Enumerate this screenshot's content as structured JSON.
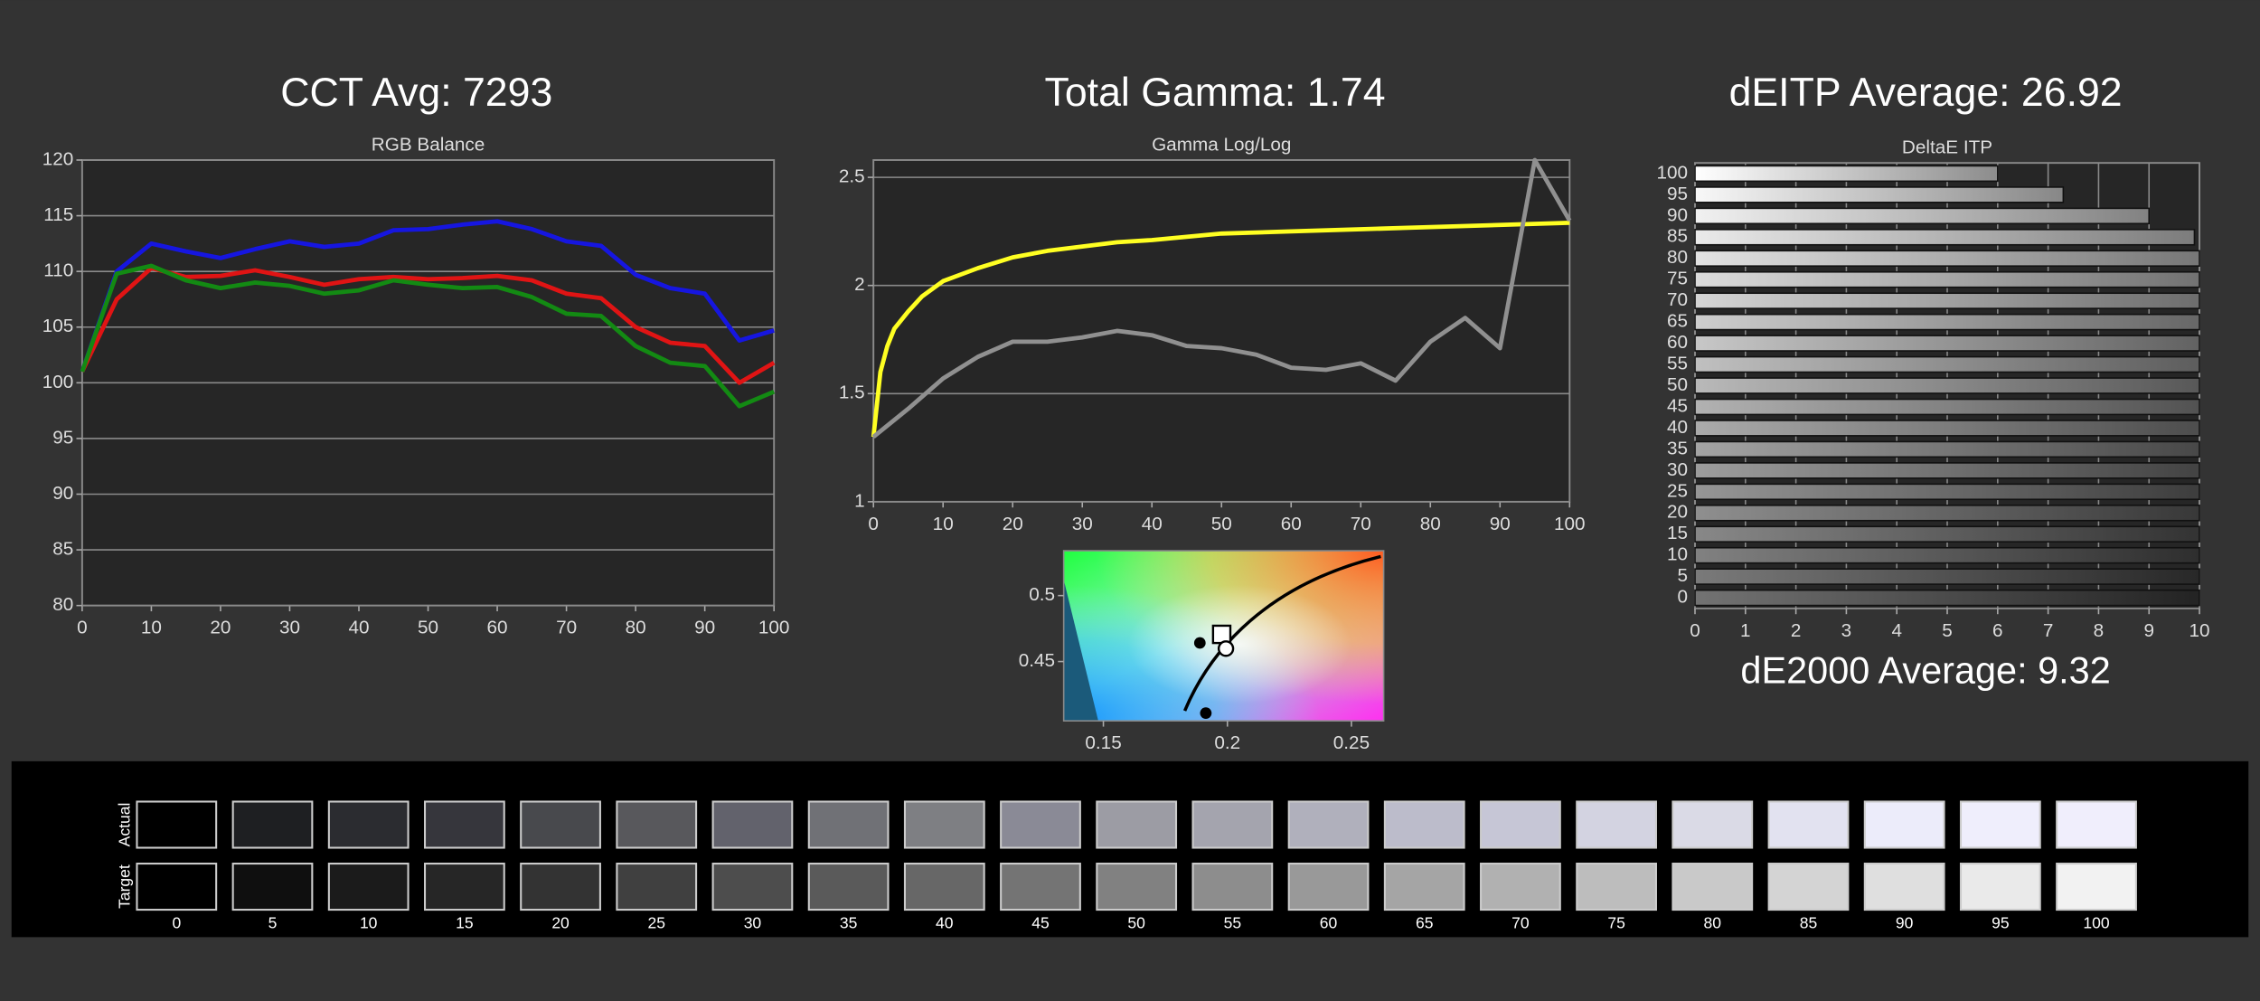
{
  "chart_data": [
    {
      "type": "line",
      "heading": "CCT Avg: 7293",
      "title": "RGB Balance",
      "x": [
        0,
        5,
        10,
        15,
        20,
        25,
        30,
        35,
        40,
        45,
        50,
        55,
        60,
        65,
        70,
        75,
        80,
        85,
        90,
        95,
        100
      ],
      "series": [
        {
          "color": "#1616e0",
          "values": [
            101,
            110,
            112.5,
            111.8,
            111.2,
            112,
            112.7,
            112.2,
            112.5,
            113.7,
            113.8,
            114.2,
            114.5,
            113.8,
            112.7,
            112.3,
            109.7,
            108.5,
            108,
            103.8,
            104.7
          ]
        },
        {
          "color": "#e01414",
          "values": [
            101,
            107.5,
            110.3,
            109.5,
            109.6,
            110.1,
            109.5,
            108.8,
            109.3,
            109.5,
            109.3,
            109.4,
            109.6,
            109.2,
            108,
            107.6,
            105,
            103.6,
            103.3,
            100,
            101.8
          ]
        },
        {
          "color": "#138a13",
          "values": [
            101,
            109.8,
            110.5,
            109.2,
            108.5,
            109,
            108.7,
            108,
            108.3,
            109.2,
            108.8,
            108.5,
            108.6,
            107.7,
            106.2,
            106,
            103.3,
            101.8,
            101.5,
            97.9,
            99.2
          ]
        }
      ],
      "xlim": [
        0,
        100
      ],
      "xticks": [
        0,
        10,
        20,
        30,
        40,
        50,
        60,
        70,
        80,
        90,
        100
      ],
      "ylim": [
        80,
        120
      ],
      "yticks": [
        80,
        85,
        90,
        95,
        100,
        105,
        110,
        115,
        120
      ],
      "grid": true
    },
    {
      "type": "line",
      "heading": "Total Gamma: 1.74",
      "title": "Gamma Log/Log",
      "series": [
        {
          "color": "#ffff22",
          "x": [
            0,
            1,
            2,
            3,
            5,
            7,
            10,
            15,
            20,
            25,
            30,
            35,
            40,
            50,
            60,
            70,
            80,
            90,
            100
          ],
          "values": [
            1.3,
            1.6,
            1.72,
            1.8,
            1.88,
            1.95,
            2.02,
            2.08,
            2.13,
            2.16,
            2.18,
            2.2,
            2.21,
            2.24,
            2.25,
            2.26,
            2.27,
            2.28,
            2.29
          ]
        },
        {
          "color": "#909090",
          "x": [
            0,
            5,
            10,
            15,
            20,
            25,
            30,
            35,
            40,
            45,
            50,
            55,
            60,
            65,
            70,
            75,
            80,
            85,
            90,
            95,
            100
          ],
          "values": [
            1.3,
            1.43,
            1.57,
            1.67,
            1.74,
            1.74,
            1.76,
            1.79,
            1.77,
            1.72,
            1.71,
            1.68,
            1.62,
            1.61,
            1.64,
            1.56,
            1.74,
            1.85,
            1.71,
            2.58,
            2.3
          ]
        }
      ],
      "xlim": [
        0,
        100
      ],
      "xticks": [
        0,
        10,
        20,
        30,
        40,
        50,
        60,
        70,
        80,
        90,
        100
      ],
      "ylim": [
        1,
        2.58
      ],
      "yticks": [
        1,
        1.5,
        2,
        2.5
      ],
      "grid": true
    },
    {
      "type": "scatter",
      "series": [
        {
          "marker": "dot",
          "x": [
            0.1889,
            0.1913
          ],
          "values": [
            0.4641,
            0.4109
          ]
        },
        {
          "marker": "square",
          "x": [
            0.1977
          ],
          "values": [
            0.4706
          ]
        },
        {
          "marker": "circle",
          "x": [
            0.1994
          ],
          "values": [
            0.4598
          ]
        }
      ],
      "xlim": [
        0.134,
        0.263
      ],
      "xticks": [
        0.15,
        0.2,
        0.25
      ],
      "ylim": [
        0.405,
        0.534
      ],
      "yticks": [
        0.45,
        0.5
      ],
      "grid": false
    },
    {
      "type": "hbar",
      "heading": "dEITP Average: 26.92",
      "title": "DeltaE ITP",
      "footer": "dE2000 Average: 9.32",
      "categories": [
        "100",
        "95",
        "90",
        "85",
        "80",
        "75",
        "70",
        "65",
        "60",
        "55",
        "50",
        "45",
        "40",
        "35",
        "30",
        "25",
        "20",
        "15",
        "10",
        "5",
        "0"
      ],
      "values": [
        6,
        7.3,
        9,
        9.9,
        10,
        10,
        10,
        10,
        10,
        10,
        10,
        10,
        10,
        10,
        10,
        10,
        10,
        10,
        10,
        10,
        10
      ],
      "xlim": [
        0,
        10
      ],
      "xticks": [
        0,
        1,
        2,
        3,
        4,
        5,
        6,
        7,
        8,
        9,
        10
      ],
      "grid": true
    }
  ],
  "swatches": {
    "row_labels": [
      "Actual",
      "Target"
    ],
    "levels": [
      0,
      5,
      10,
      15,
      20,
      25,
      30,
      35,
      40,
      45,
      50,
      55,
      60,
      65,
      70,
      75,
      80,
      85,
      90,
      95,
      100
    ],
    "actual": [
      "#000000",
      "#1e1f22",
      "#2b2c30",
      "#36363c",
      "#48494d",
      "#58585c",
      "#62626c",
      "#707176",
      "#7e7f83",
      "#8a8a96",
      "#9c9ca4",
      "#a4a4ae",
      "#b0b0bc",
      "#bcbccb",
      "#c6c6d6",
      "#d3d3e1",
      "#dadae6",
      "#e2e2f0",
      "#ececfa",
      "#efeefc",
      "#f0eefc"
    ],
    "target": [
      "#000000",
      "#0f0f0f",
      "#1b1b1b",
      "#262626",
      "#333333",
      "#404040",
      "#4d4d4d",
      "#5a5a5a",
      "#676767",
      "#747474",
      "#818181",
      "#8d8d8d",
      "#999999",
      "#a5a5a5",
      "#b1b1b1",
      "#bdbdbd",
      "#c9c9c9",
      "#d4d4d4",
      "#dfdfdf",
      "#eaeaea",
      "#f2f2f2"
    ]
  }
}
